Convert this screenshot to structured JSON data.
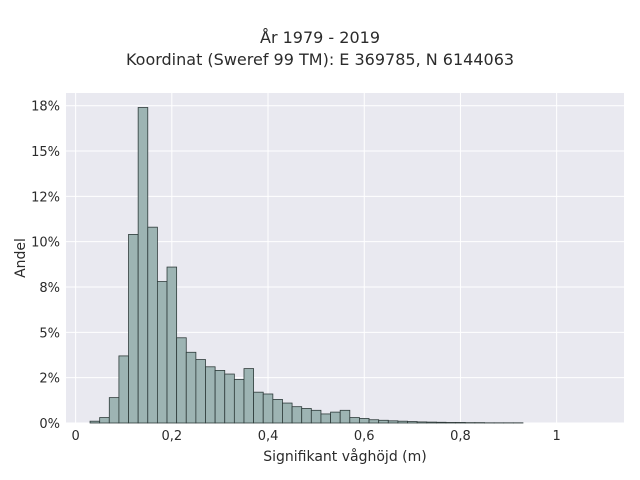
{
  "chart_data": {
    "type": "bar",
    "title": "År 1979 - 2019",
    "subtitle": "Koordinat (Sweref 99 TM): E 369785, N 6144063",
    "xlabel": "Signifikant våghöjd (m)",
    "ylabel": "Andel",
    "xlim": [
      -0.02,
      1.14
    ],
    "ylim": [
      0,
      0.182
    ],
    "x_ticks": [
      0,
      0.2,
      0.4,
      0.6,
      0.8,
      1
    ],
    "x_tick_labels": [
      "0",
      "0,2",
      "0,4",
      "0,6",
      "0,8",
      "1"
    ],
    "y_ticks": [
      0,
      0.025,
      0.05,
      0.075,
      0.1,
      0.125,
      0.15,
      0.175
    ],
    "y_tick_labels": [
      "0%",
      "2%",
      "5%",
      "8%",
      "10%",
      "12%",
      "15%",
      "18%"
    ],
    "grid": true,
    "bin_width": 0.02,
    "bin_starts": [
      0.03,
      0.05,
      0.07,
      0.09,
      0.11,
      0.13,
      0.15,
      0.17,
      0.19,
      0.21,
      0.23,
      0.25,
      0.27,
      0.29,
      0.31,
      0.33,
      0.35,
      0.37,
      0.39,
      0.41,
      0.43,
      0.45,
      0.47,
      0.49,
      0.51,
      0.53,
      0.55,
      0.57,
      0.59,
      0.61,
      0.63,
      0.65,
      0.67,
      0.69,
      0.71,
      0.73,
      0.75,
      0.77,
      0.79,
      0.81,
      0.83,
      0.85,
      0.87,
      0.89,
      0.91
    ],
    "values": [
      0.001,
      0.003,
      0.014,
      0.037,
      0.104,
      0.174,
      0.108,
      0.078,
      0.086,
      0.047,
      0.039,
      0.035,
      0.031,
      0.029,
      0.027,
      0.024,
      0.03,
      0.017,
      0.016,
      0.013,
      0.011,
      0.009,
      0.008,
      0.007,
      0.005,
      0.006,
      0.007,
      0.003,
      0.0025,
      0.0018,
      0.0015,
      0.0012,
      0.001,
      0.0008,
      0.0006,
      0.0005,
      0.0004,
      0.0003,
      0.0003,
      0.0002,
      0.0002,
      0.0001,
      0.0001,
      0.0001,
      0.0001
    ],
    "colors": {
      "bar_fill": "#9db4b3",
      "bar_stroke": "#2e3b3a",
      "plot_bg": "#e9e9f0",
      "grid": "#ffffff"
    }
  }
}
